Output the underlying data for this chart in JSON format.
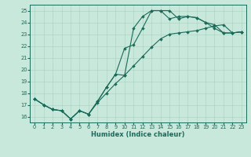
{
  "xlabel": "Humidex (Indice chaleur)",
  "xlim": [
    -0.5,
    23.5
  ],
  "ylim": [
    15.5,
    25.5
  ],
  "xticks": [
    0,
    1,
    2,
    3,
    4,
    5,
    6,
    7,
    8,
    9,
    10,
    11,
    12,
    13,
    14,
    15,
    16,
    17,
    18,
    19,
    20,
    21,
    22,
    23
  ],
  "yticks": [
    16,
    17,
    18,
    19,
    20,
    21,
    22,
    23,
    24,
    25
  ],
  "bg_color": "#c8e8dc",
  "line_color": "#1a6b5a",
  "grid_color": "#a8cfc0",
  "lines": [
    [
      17.5,
      17.0,
      16.6,
      16.5,
      15.8,
      16.5,
      16.2,
      17.3,
      18.5,
      19.6,
      21.8,
      22.1,
      23.5,
      25.0,
      25.0,
      24.3,
      24.5,
      24.5,
      24.4,
      24.0,
      23.8,
      23.1,
      23.1,
      23.2
    ],
    [
      17.5,
      17.0,
      16.6,
      16.5,
      15.8,
      16.5,
      16.2,
      17.3,
      18.5,
      19.6,
      19.5,
      23.5,
      24.5,
      25.0,
      25.0,
      25.0,
      24.3,
      24.5,
      24.4,
      24.0,
      23.5,
      23.1,
      23.1,
      23.2
    ],
    [
      17.5,
      17.0,
      16.6,
      16.5,
      15.8,
      16.5,
      16.2,
      17.2,
      18.0,
      18.8,
      19.5,
      20.3,
      21.1,
      21.9,
      22.6,
      23.0,
      23.1,
      23.2,
      23.3,
      23.5,
      23.7,
      23.8,
      23.1,
      23.2
    ]
  ]
}
